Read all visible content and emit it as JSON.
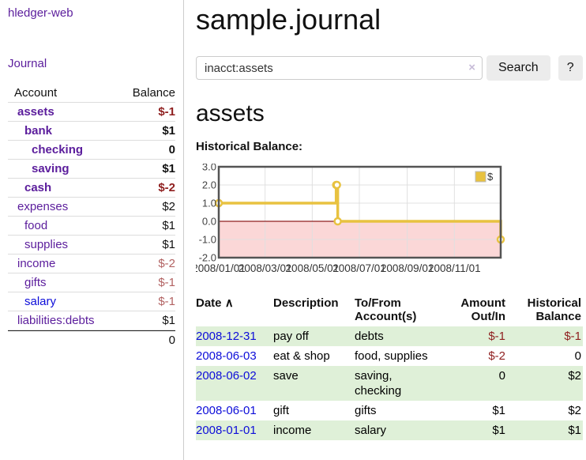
{
  "app": {
    "title": "hledger-web"
  },
  "nav": {
    "journal": "Journal"
  },
  "colors": {
    "link_purple": "#5b1d9c",
    "link_blue": "#0d0dd9",
    "negative_dark": "#8f1f1f",
    "negative_light": "#b26262",
    "row_stripe_green": "#dff0d8",
    "chart_line_gold": "#e8c240",
    "chart_negative_region": "#fbd7d7",
    "chart_zero_line": "#8f2020",
    "chart_border": "#545454"
  },
  "sidebar": {
    "header": {
      "account": "Account",
      "balance": "Balance"
    },
    "accounts": [
      {
        "name": "assets",
        "depth": 1,
        "balance": "$-1",
        "bold": true,
        "balance_class": "neg-dark",
        "link": "purple"
      },
      {
        "name": "bank",
        "depth": 2,
        "balance": "$1",
        "bold": true,
        "balance_class": "plain",
        "link": "purple"
      },
      {
        "name": "checking",
        "depth": 3,
        "balance": "0",
        "bold": true,
        "balance_class": "plain",
        "link": "purple"
      },
      {
        "name": "saving",
        "depth": 3,
        "balance": "$1",
        "bold": true,
        "balance_class": "plain",
        "link": "purple"
      },
      {
        "name": "cash",
        "depth": 2,
        "balance": "$-2",
        "bold": true,
        "balance_class": "neg-dark",
        "link": "purple"
      },
      {
        "name": "expenses",
        "depth": 1,
        "balance": "$2",
        "bold": false,
        "balance_class": "plain",
        "link": "purple"
      },
      {
        "name": "food",
        "depth": 2,
        "balance": "$1",
        "bold": false,
        "balance_class": "plain",
        "link": "purple"
      },
      {
        "name": "supplies",
        "depth": 2,
        "balance": "$1",
        "bold": false,
        "balance_class": "plain",
        "link": "purple"
      },
      {
        "name": "income",
        "depth": 1,
        "balance": "$-2",
        "bold": false,
        "balance_class": "neg-light",
        "link": "purple"
      },
      {
        "name": "gifts",
        "depth": 2,
        "balance": "$-1",
        "bold": false,
        "balance_class": "neg-light",
        "link": "purple"
      },
      {
        "name": "salary",
        "depth": 2,
        "balance": "$-1",
        "bold": false,
        "balance_class": "neg-light",
        "link": "blue"
      },
      {
        "name": "liabilities:debts",
        "depth": 1,
        "balance": "$1",
        "bold": false,
        "balance_class": "plain",
        "link": "purple"
      }
    ],
    "total": "0"
  },
  "main": {
    "title": "sample.journal",
    "account_heading": "assets",
    "chart_label": "Historical Balance:"
  },
  "search": {
    "value": "inacct:assets",
    "clear_icon": "×",
    "button_label": "Search",
    "help_label": "?"
  },
  "chart_data": {
    "type": "line",
    "step": true,
    "title": "Historical Balance:",
    "legend": [
      {
        "label": "$",
        "color": "#e8c240"
      }
    ],
    "legend_position": "top-right",
    "grid": true,
    "x_start": "2008-01-01",
    "x_end": "2008-12-31",
    "xticks": [
      "2008/01/01",
      "2008/03/01",
      "2008/05/01",
      "2008/07/01",
      "2008/09/01",
      "2008/11/01"
    ],
    "yticks": [
      "3.0",
      "2.0",
      "1.0",
      "0.0",
      "-1.0",
      "-2.0"
    ],
    "ylim": [
      -2,
      3
    ],
    "series": [
      {
        "name": "$",
        "points": [
          {
            "x": "2008-01-01",
            "y": 1
          },
          {
            "x": "2008-06-01",
            "y": 2
          },
          {
            "x": "2008-06-02",
            "y": 2
          },
          {
            "x": "2008-06-03",
            "y": 0
          },
          {
            "x": "2008-12-31",
            "y": -1
          }
        ]
      }
    ],
    "negative_region_shaded": true
  },
  "register": {
    "headers": {
      "date": "Date",
      "sort_arrow": "∧",
      "description": "Description",
      "accounts": "To/From Account(s)",
      "amount": "Amount Out/In",
      "balance": "Historical Balance"
    },
    "rows": [
      {
        "date": "2008-12-31",
        "description": "pay off",
        "accounts": "debts",
        "amount": "$-1",
        "amount_neg": true,
        "balance": "$-1",
        "balance_neg": true,
        "shade": true
      },
      {
        "date": "2008-06-03",
        "description": "eat & shop",
        "accounts": "food, supplies",
        "amount": "$-2",
        "amount_neg": true,
        "balance": "0",
        "balance_neg": false,
        "shade": false
      },
      {
        "date": "2008-06-02",
        "description": "save",
        "accounts": "saving, checking",
        "amount": "0",
        "amount_neg": false,
        "balance": "$2",
        "balance_neg": false,
        "shade": true
      },
      {
        "date": "2008-06-01",
        "description": "gift",
        "accounts": "gifts",
        "amount": "$1",
        "amount_neg": false,
        "balance": "$2",
        "balance_neg": false,
        "shade": false
      },
      {
        "date": "2008-01-01",
        "description": "income",
        "accounts": "salary",
        "amount": "$1",
        "amount_neg": false,
        "balance": "$1",
        "balance_neg": false,
        "shade": true
      }
    ]
  }
}
